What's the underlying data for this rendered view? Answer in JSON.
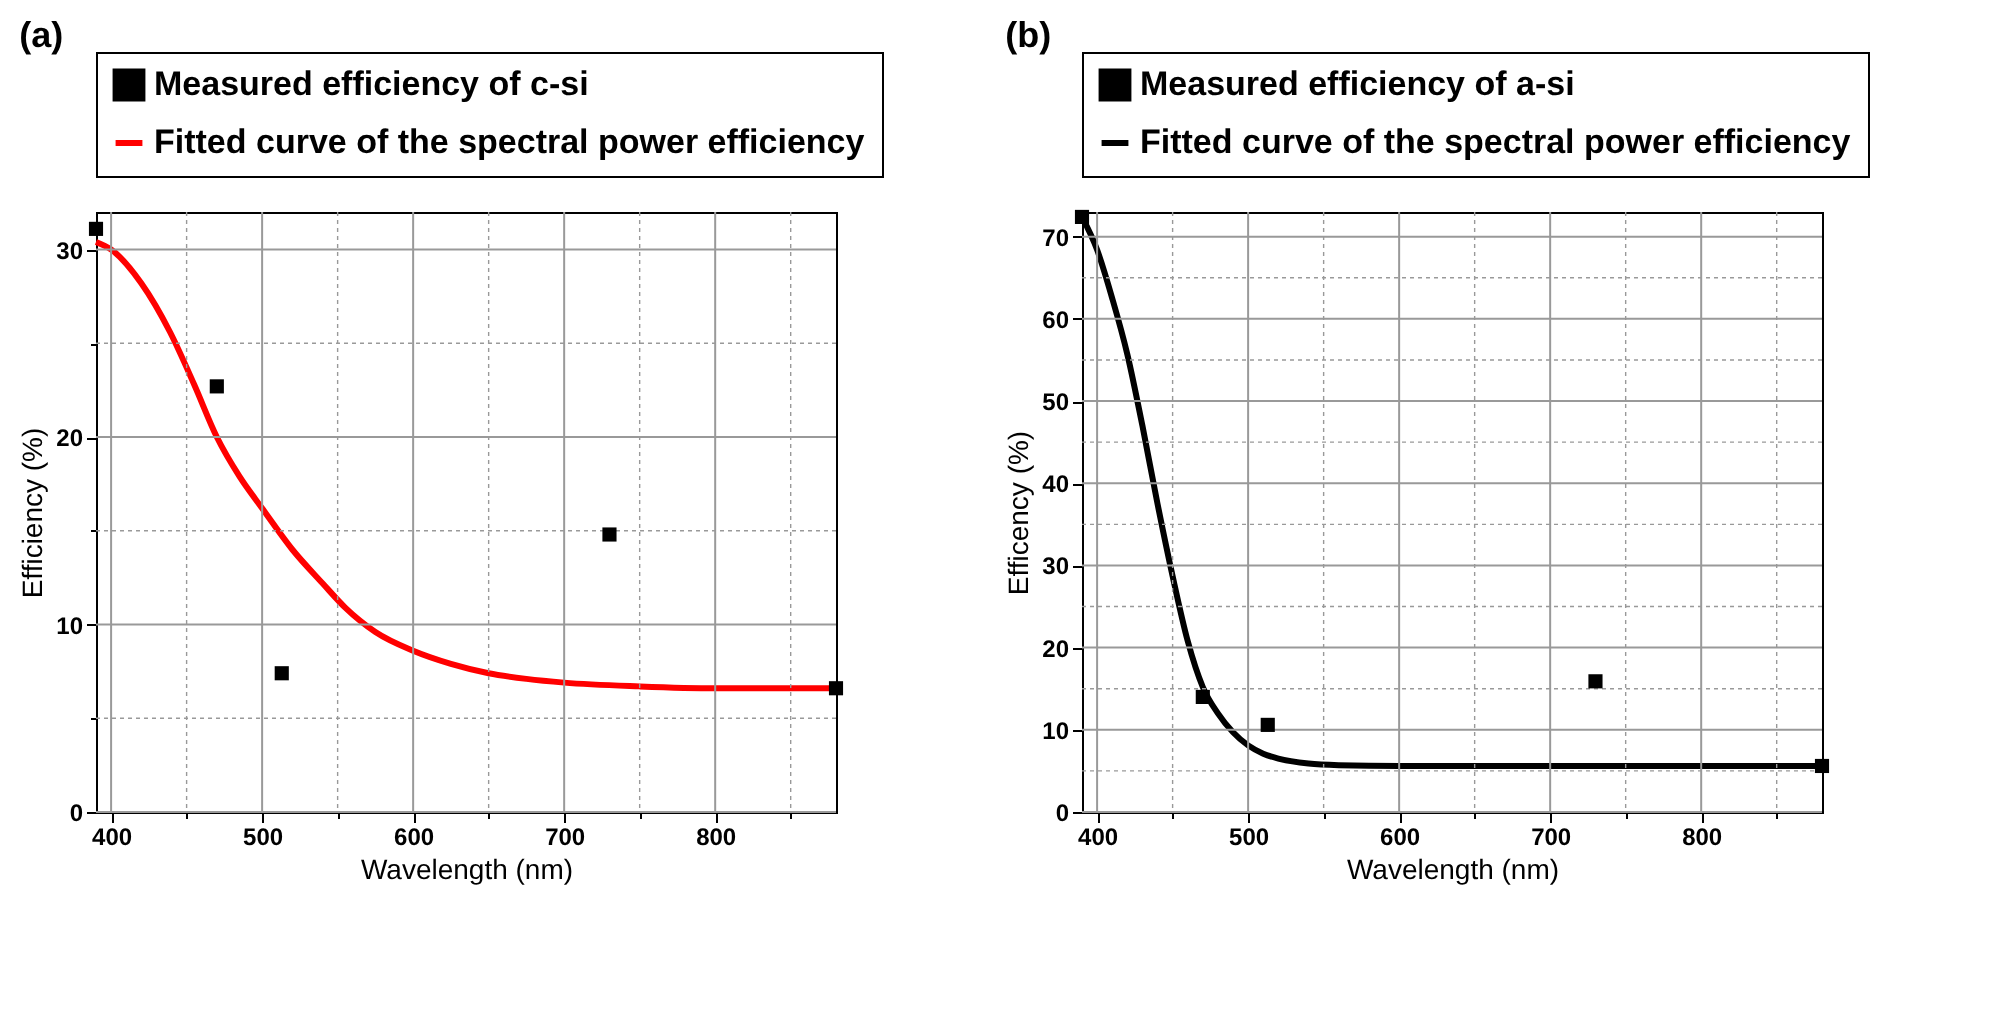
{
  "chart_data": [
    {
      "type": "scatter",
      "title": "(a)",
      "xlabel": "Wavelength (nm)",
      "ylabel": "Efficiency (%)",
      "xlim": [
        390,
        880
      ],
      "ylim": [
        0,
        32
      ],
      "xticks": [
        400,
        {
          "value": 450,
          "label": null
        },
        500,
        {
          "value": 550,
          "label": null
        },
        600,
        {
          "value": 650,
          "label": null
        },
        700,
        {
          "value": 750,
          "label": null
        },
        800,
        {
          "value": 850,
          "label": null
        }
      ],
      "yticks": [
        0,
        {
          "value": 5,
          "label": null
        },
        10,
        {
          "value": 15,
          "label": null
        },
        20,
        {
          "value": 25,
          "label": null
        },
        30
      ],
      "grid": true,
      "legend": "top",
      "series": [
        {
          "name": "Measured efficiency of c-si",
          "marker": "square",
          "color": "#000000",
          "x": [
            390,
            470,
            513,
            730,
            880
          ],
          "values": [
            31.1,
            22.7,
            7.4,
            14.8,
            6.6
          ]
        },
        {
          "name": "Fitted curve of the spectral power efficiency",
          "type": "line",
          "marker": "none",
          "color": "#ff0000",
          "x": [
            390,
            400,
            420,
            439,
            455,
            470,
            485,
            500,
            520,
            540,
            555,
            575,
            600,
            625,
            650,
            675,
            700,
            750,
            800,
            850,
            880
          ],
          "values": [
            30.4,
            30,
            28.2,
            25.6,
            22.8,
            20,
            17.9,
            16.2,
            14,
            12.2,
            10.9,
            9.6,
            8.6,
            7.9,
            7.4,
            7.1,
            6.9,
            6.7,
            6.6,
            6.6,
            6.6
          ]
        }
      ]
    },
    {
      "type": "scatter",
      "title": "(b)",
      "xlabel": "Wavelength (nm)",
      "ylabel": "Efficency (%)",
      "xlim": [
        390,
        880
      ],
      "ylim": [
        0,
        73
      ],
      "xticks": [
        400,
        {
          "value": 450,
          "label": null
        },
        500,
        {
          "value": 550,
          "label": null
        },
        600,
        {
          "value": 650,
          "label": null
        },
        700,
        {
          "value": 750,
          "label": null
        },
        800,
        {
          "value": 850,
          "label": null
        }
      ],
      "yticks": [
        0,
        {
          "value": 5,
          "label": null
        },
        10,
        {
          "value": 15,
          "label": null
        },
        20,
        {
          "value": 25,
          "label": null
        },
        30,
        {
          "value": 35,
          "label": null
        },
        40,
        {
          "value": 45,
          "label": null
        },
        50,
        {
          "value": 55,
          "label": null
        },
        60,
        {
          "value": 65,
          "label": null
        },
        70
      ],
      "grid": true,
      "legend": "top",
      "series": [
        {
          "name": "Measured efficiency of a-si",
          "marker": "square",
          "color": "#000000",
          "x": [
            390,
            470,
            513,
            730,
            880
          ],
          "values": [
            72.4,
            14,
            10.6,
            15.9,
            5.6
          ]
        },
        {
          "name": "Fitted curve of the spectral power efficiency",
          "type": "line",
          "marker": "none",
          "color": "#000000",
          "x": [
            390,
            400,
            410,
            420,
            430,
            440,
            450,
            460,
            470,
            480,
            490,
            500,
            510,
            520,
            540,
            560,
            600,
            700,
            800,
            880
          ],
          "values": [
            72.4,
            68.4,
            62.5,
            55.7,
            47,
            37.5,
            28.7,
            20.8,
            15.2,
            12,
            9.7,
            8.1,
            7.1,
            6.5,
            5.9,
            5.7,
            5.6,
            5.6,
            5.6,
            5.6
          ]
        }
      ]
    }
  ]
}
